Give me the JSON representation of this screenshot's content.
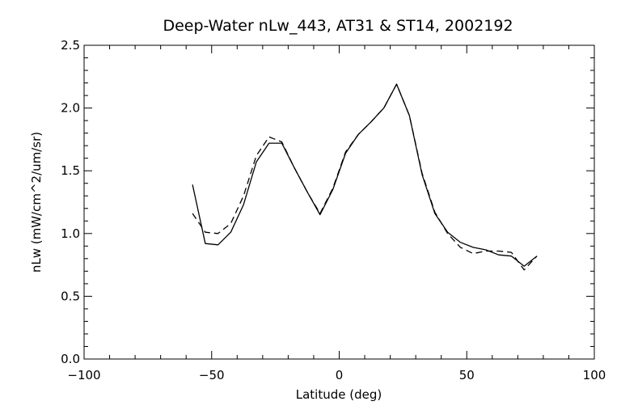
{
  "chart_data": {
    "type": "line",
    "title": "Deep-Water nLw_443, AT31 & ST14, 2002192",
    "xlabel": "Latitude (deg)",
    "ylabel": "nLw (mW/cm^2/um/sr)",
    "xlim": [
      -100,
      100
    ],
    "ylim": [
      0.0,
      2.5
    ],
    "x_ticks": [
      -100,
      -50,
      0,
      50,
      100
    ],
    "y_ticks": [
      0.0,
      0.5,
      1.0,
      1.5,
      2.0,
      2.5
    ],
    "x_tick_labels": [
      "−100",
      "−50",
      "0",
      "50",
      "100"
    ],
    "y_tick_labels": [
      "0.0",
      "0.5",
      "1.0",
      "1.5",
      "2.0",
      "2.5"
    ],
    "grid": false,
    "legend": "none",
    "series": [
      {
        "style": "solid",
        "x": [
          -57.5,
          -52.5,
          -47.5,
          -42.5,
          -37.5,
          -32.5,
          -27.5,
          -22.5,
          -17.5,
          -12.5,
          -7.5,
          -2.5,
          2.5,
          7.5,
          12.5,
          17.5,
          22.5,
          27.5,
          32.5,
          37.5,
          42.5,
          47.5,
          52.5,
          57.5,
          62.5,
          67.5,
          72.5,
          77.5
        ],
        "y": [
          1.39,
          0.92,
          0.91,
          1.01,
          1.23,
          1.57,
          1.72,
          1.72,
          1.52,
          1.33,
          1.15,
          1.35,
          1.64,
          1.79,
          1.89,
          2.0,
          2.19,
          1.94,
          1.47,
          1.16,
          1.01,
          0.93,
          0.89,
          0.87,
          0.83,
          0.82,
          0.74,
          0.82
        ]
      },
      {
        "style": "dashed",
        "x": [
          -57.5,
          -52.5,
          -47.5,
          -42.5,
          -37.5,
          -32.5,
          -27.5,
          -22.5,
          -17.5,
          -12.5,
          -7.5,
          -2.5,
          2.5,
          7.5,
          12.5,
          17.5,
          22.5,
          27.5,
          32.5,
          37.5,
          42.5,
          47.5,
          52.5,
          57.5,
          62.5,
          67.5,
          72.5,
          77.5
        ],
        "y": [
          1.16,
          1.01,
          1.0,
          1.08,
          1.3,
          1.62,
          1.77,
          1.73,
          1.52,
          1.33,
          1.16,
          1.36,
          1.65,
          1.79,
          1.89,
          2.0,
          2.19,
          1.94,
          1.48,
          1.17,
          1.0,
          0.89,
          0.84,
          0.86,
          0.86,
          0.85,
          0.71,
          0.82
        ]
      }
    ]
  }
}
